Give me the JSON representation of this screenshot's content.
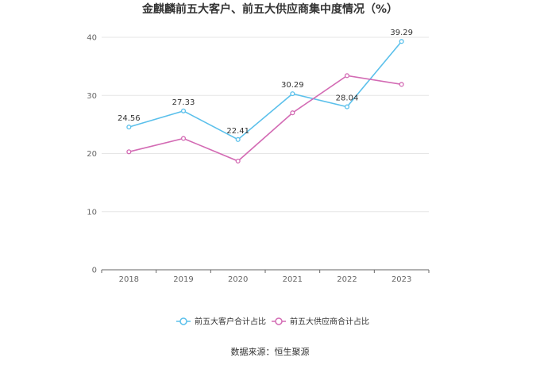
{
  "chart_data": {
    "type": "line",
    "title": "金麒麟前五大客户、前五大供应商集中度情况（%）",
    "categories": [
      "2018",
      "2019",
      "2020",
      "2021",
      "2022",
      "2023"
    ],
    "ylim": [
      0,
      40
    ],
    "yticks": [
      "0",
      "10",
      "20",
      "30",
      "40"
    ],
    "grid": true,
    "legend_position": "bottom",
    "series": [
      {
        "name": "前五大客户合计占比",
        "color": "#5bc0eb",
        "values": [
          24.56,
          27.33,
          22.41,
          30.29,
          28.04,
          39.29
        ],
        "labels": [
          "24.56",
          "27.33",
          "22.41",
          "30.29",
          "28.04",
          "39.29"
        ]
      },
      {
        "name": "前五大供应商合计占比",
        "color": "#d36bb4",
        "values": [
          20.3,
          22.6,
          18.7,
          27.0,
          33.4,
          31.9
        ],
        "labels": []
      }
    ]
  },
  "source": "数据来源：恒生聚源"
}
